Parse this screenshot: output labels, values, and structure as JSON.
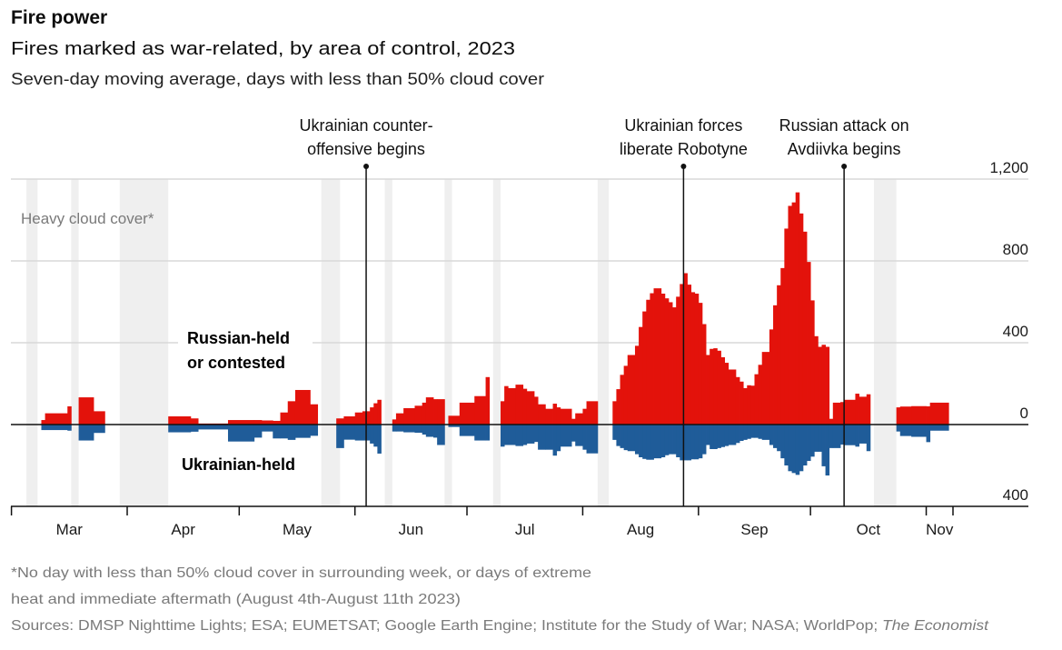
{
  "header": {
    "title": "Fire power",
    "subtitle": "Fires marked as war-related, by area of control, 2023",
    "note": "Seven-day moving average, days with less than 50% cloud cover"
  },
  "footer": {
    "footnote_line1": "*No day with less than 50% cloud cover in surrounding week, or days of extreme",
    "footnote_line2": "heat and immediate aftermath (August 4th-August 11th 2023)",
    "sources": "Sources: DMSP Nighttime Lights; ESA; EUMETSAT; Google Earth Engine; Institute for the Study of War; NASA; WorldPop; ",
    "sources_brand": "The Economist"
  },
  "chart_data": {
    "type": "area",
    "subtype": "diverging stepped area",
    "title": "Fires marked as war-related, by area of control, 2023",
    "colors": {
      "russian": "#e3120b",
      "ukrainian": "#1f5c99",
      "cloud": "#efefef",
      "grid": "#d9d9d9"
    },
    "y_ticks": [
      {
        "value": 1200,
        "label": "1,200"
      },
      {
        "value": 800,
        "label": "800"
      },
      {
        "value": 400,
        "label": "400"
      },
      {
        "value": 0,
        "label": "0"
      },
      {
        "value": -400,
        "label": "400"
      }
    ],
    "ylim": [
      -400,
      1200
    ],
    "grid": true,
    "x_months": [
      {
        "start": "2023-03-01",
        "label": "Mar"
      },
      {
        "start": "2023-04-01",
        "label": "Apr"
      },
      {
        "start": "2023-05-01",
        "label": "May"
      },
      {
        "start": "2023-06-01",
        "label": "Jun"
      },
      {
        "start": "2023-07-01",
        "label": "Jul"
      },
      {
        "start": "2023-08-01",
        "label": "Aug"
      },
      {
        "start": "2023-09-01",
        "label": "Sep"
      },
      {
        "start": "2023-10-01",
        "label": "Oct"
      },
      {
        "start": "2023-11-01",
        "label": "Nov"
      }
    ],
    "series_labels": {
      "russian": [
        "Russian-held",
        "or contested"
      ],
      "ukrainian": "Ukrainian-held"
    },
    "cloud_label": "Heavy cloud cover*",
    "cloud_periods": [
      [
        "2023-03-05",
        "2023-03-08"
      ],
      [
        "2023-03-17",
        "2023-03-19"
      ],
      [
        "2023-03-30",
        "2023-04-12"
      ],
      [
        "2023-05-23",
        "2023-05-28"
      ],
      [
        "2023-06-09",
        "2023-06-11"
      ],
      [
        "2023-06-25",
        "2023-06-27"
      ],
      [
        "2023-07-08",
        "2023-07-10"
      ],
      [
        "2023-08-05",
        "2023-08-08"
      ],
      [
        "2023-10-18",
        "2023-10-24"
      ]
    ],
    "annotations": [
      {
        "date": "2023-06-04",
        "lines": [
          "Ukrainian counter-",
          "offensive begins"
        ]
      },
      {
        "date": "2023-08-28",
        "lines": [
          "Ukrainian forces",
          "liberate Robotyne"
        ]
      },
      {
        "date": "2023-10-10",
        "lines": [
          "Russian attack on",
          "Avdiivka begins"
        ]
      }
    ],
    "segments_columns": [
      "date",
      "russian_held_or_contested",
      "ukrainian_held"
    ],
    "segments": [
      {
        "end": "2023-03-17",
        "steps": [
          [
            "2023-03-09",
            22,
            27
          ],
          [
            "2023-03-10",
            55,
            27
          ],
          [
            "2023-03-16",
            89,
            30
          ]
        ]
      },
      {
        "end": "2023-03-26",
        "steps": [
          [
            "2023-03-19",
            133,
            78
          ],
          [
            "2023-03-23",
            65,
            41
          ]
        ]
      },
      {
        "end": "2023-05-22",
        "steps": [
          [
            "2023-04-12",
            40,
            38
          ],
          [
            "2023-04-18",
            30,
            35
          ],
          [
            "2023-04-20",
            5,
            24
          ],
          [
            "2023-04-28",
            22,
            83
          ],
          [
            "2023-05-05",
            22,
            64
          ],
          [
            "2023-05-07",
            20,
            34
          ],
          [
            "2023-05-10",
            18,
            68
          ],
          [
            "2023-05-12",
            59,
            68
          ],
          [
            "2023-05-14",
            114,
            75
          ],
          [
            "2023-05-16",
            169,
            65
          ],
          [
            "2023-05-20",
            99,
            55
          ]
        ]
      },
      {
        "end": "2023-06-08",
        "steps": [
          [
            "2023-05-27",
            30,
            115
          ],
          [
            "2023-05-29",
            40,
            74
          ],
          [
            "2023-06-01",
            59,
            78
          ],
          [
            "2023-06-03",
            65,
            78
          ],
          [
            "2023-06-05",
            84,
            93
          ],
          [
            "2023-06-06",
            104,
            108
          ],
          [
            "2023-06-07",
            121,
            142
          ]
        ]
      },
      {
        "end": "2023-06-25",
        "steps": [
          [
            "2023-06-11",
            25,
            34
          ],
          [
            "2023-06-12",
            55,
            34
          ],
          [
            "2023-06-14",
            80,
            38
          ],
          [
            "2023-06-17",
            92,
            40
          ],
          [
            "2023-06-19",
            107,
            49
          ],
          [
            "2023-06-20",
            133,
            60
          ],
          [
            "2023-06-22",
            124,
            64
          ],
          [
            "2023-06-23",
            124,
            100
          ]
        ]
      },
      {
        "end": "2023-07-07",
        "steps": [
          [
            "2023-06-26",
            43,
            12
          ],
          [
            "2023-06-29",
            107,
            56
          ],
          [
            "2023-07-03",
            139,
            78
          ],
          [
            "2023-07-06",
            232,
            78
          ]
        ]
      },
      {
        "end": "2023-08-05",
        "steps": [
          [
            "2023-07-10",
            114,
            108
          ],
          [
            "2023-07-11",
            188,
            100
          ],
          [
            "2023-07-12",
            178,
            100
          ],
          [
            "2023-07-14",
            195,
            105
          ],
          [
            "2023-07-16",
            175,
            100
          ],
          [
            "2023-07-17",
            163,
            93
          ],
          [
            "2023-07-19",
            136,
            85
          ],
          [
            "2023-07-20",
            99,
            123
          ],
          [
            "2023-07-22",
            77,
            123
          ],
          [
            "2023-07-24",
            102,
            152
          ],
          [
            "2023-07-25",
            84,
            130
          ],
          [
            "2023-07-26",
            77,
            108
          ],
          [
            "2023-07-29",
            28,
            83
          ],
          [
            "2023-07-30",
            55,
            105
          ],
          [
            "2023-08-01",
            77,
            123
          ],
          [
            "2023-08-02",
            114,
            141
          ]
        ]
      },
      {
        "end": "2023-10-17",
        "steps": [
          [
            "2023-08-09",
            114,
            75
          ],
          [
            "2023-08-10",
            173,
            105
          ],
          [
            "2023-08-11",
            243,
            115
          ],
          [
            "2023-08-12",
            287,
            125
          ],
          [
            "2023-08-13",
            340,
            130
          ],
          [
            "2023-08-15",
            385,
            145
          ],
          [
            "2023-08-16",
            477,
            160
          ],
          [
            "2023-08-17",
            553,
            168
          ],
          [
            "2023-08-18",
            610,
            172
          ],
          [
            "2023-08-19",
            642,
            172
          ],
          [
            "2023-08-20",
            666,
            165
          ],
          [
            "2023-08-22",
            640,
            160
          ],
          [
            "2023-08-23",
            617,
            150
          ],
          [
            "2023-08-24",
            598,
            145
          ],
          [
            "2023-08-25",
            573,
            145
          ],
          [
            "2023-08-26",
            625,
            160
          ],
          [
            "2023-08-27",
            687,
            175
          ],
          [
            "2023-08-28",
            740,
            175
          ],
          [
            "2023-08-29",
            684,
            175
          ],
          [
            "2023-08-30",
            647,
            170
          ],
          [
            "2023-08-31",
            640,
            170
          ],
          [
            "2023-09-01",
            595,
            165
          ],
          [
            "2023-09-02",
            491,
            145
          ],
          [
            "2023-09-03",
            340,
            100
          ],
          [
            "2023-09-04",
            370,
            120
          ],
          [
            "2023-09-05",
            373,
            120
          ],
          [
            "2023-09-06",
            361,
            115
          ],
          [
            "2023-09-07",
            329,
            110
          ],
          [
            "2023-09-08",
            302,
            105
          ],
          [
            "2023-09-09",
            269,
            100
          ],
          [
            "2023-09-11",
            232,
            90
          ],
          [
            "2023-09-12",
            210,
            80
          ],
          [
            "2023-09-13",
            178,
            75
          ],
          [
            "2023-09-14",
            192,
            70
          ],
          [
            "2023-09-15",
            190,
            65
          ],
          [
            "2023-09-16",
            246,
            65
          ],
          [
            "2023-09-17",
            292,
            70
          ],
          [
            "2023-09-18",
            355,
            75
          ],
          [
            "2023-09-20",
            465,
            100
          ],
          [
            "2023-09-21",
            583,
            115
          ],
          [
            "2023-09-22",
            681,
            130
          ],
          [
            "2023-09-23",
            765,
            165
          ],
          [
            "2023-09-24",
            958,
            200
          ],
          [
            "2023-09-25",
            1069,
            228
          ],
          [
            "2023-09-26",
            1086,
            237
          ],
          [
            "2023-09-27",
            1135,
            246
          ],
          [
            "2023-09-28",
            1032,
            228
          ],
          [
            "2023-09-29",
            943,
            200
          ],
          [
            "2023-09-30",
            795,
            178
          ],
          [
            "2023-10-01",
            607,
            157
          ],
          [
            "2023-10-02",
            432,
            133
          ],
          [
            "2023-10-03",
            380,
            133
          ],
          [
            "2023-10-04",
            390,
            204
          ],
          [
            "2023-10-05",
            380,
            249
          ],
          [
            "2023-10-06",
            28,
            115
          ],
          [
            "2023-10-07",
            107,
            115
          ],
          [
            "2023-10-09",
            110,
            98
          ],
          [
            "2023-10-10",
            121,
            101
          ],
          [
            "2023-10-13",
            151,
            108
          ],
          [
            "2023-10-14",
            136,
            93
          ],
          [
            "2023-10-16",
            148,
            130
          ]
        ]
      },
      {
        "end": "2023-11-07",
        "steps": [
          [
            "2023-10-24",
            84,
            34
          ],
          [
            "2023-10-25",
            88,
            56
          ],
          [
            "2023-10-28",
            90,
            60
          ],
          [
            "2023-11-01",
            89,
            86
          ],
          [
            "2023-11-02",
            107,
            30
          ]
        ]
      }
    ]
  }
}
